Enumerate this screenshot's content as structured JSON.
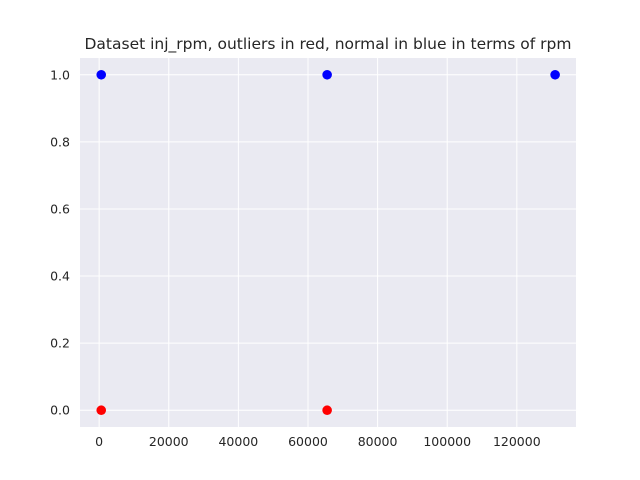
{
  "chart_data": {
    "type": "scatter",
    "title": "Dataset inj_rpm, outliers in red, normal in blue in terms of rpm",
    "xlabel": "",
    "ylabel": "",
    "xlim": [
      -5500,
      137000
    ],
    "ylim": [
      -0.05,
      1.05
    ],
    "xticks": [
      0,
      20000,
      40000,
      60000,
      80000,
      100000,
      120000
    ],
    "xtick_labels": [
      "0",
      "20000",
      "40000",
      "60000",
      "80000",
      "100000",
      "120000"
    ],
    "yticks": [
      0.0,
      0.2,
      0.4,
      0.6,
      0.8,
      1.0
    ],
    "ytick_labels": [
      "0.0",
      "0.2",
      "0.4",
      "0.6",
      "0.8",
      "1.0"
    ],
    "grid": true,
    "background_color": "#eaeaf2",
    "grid_color": "#ffffff",
    "series": [
      {
        "color": "#ff0000",
        "points": [
          {
            "x": 600,
            "y": 0
          },
          {
            "x": 65500,
            "y": 0
          }
        ]
      },
      {
        "color": "#0000ff",
        "points": [
          {
            "x": 600,
            "y": 1
          },
          {
            "x": 65500,
            "y": 1
          },
          {
            "x": 131000,
            "y": 1
          }
        ]
      }
    ]
  }
}
